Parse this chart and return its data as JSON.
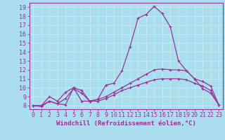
{
  "x": [
    0,
    1,
    2,
    3,
    4,
    5,
    6,
    7,
    8,
    9,
    10,
    11,
    12,
    13,
    14,
    15,
    16,
    17,
    18,
    19,
    20,
    21,
    22,
    23
  ],
  "line1": [
    8.0,
    7.9,
    8.5,
    8.2,
    8.1,
    10.0,
    8.5,
    8.5,
    8.7,
    10.3,
    10.5,
    11.9,
    14.6,
    17.8,
    18.2,
    19.1,
    18.3,
    16.8,
    13.0,
    11.9,
    11.0,
    9.9,
    9.4,
    8.1
  ],
  "line2": [
    8.0,
    8.0,
    9.0,
    8.5,
    9.5,
    10.0,
    9.7,
    8.5,
    8.7,
    9.0,
    9.5,
    10.0,
    10.5,
    11.0,
    11.5,
    12.0,
    12.1,
    12.0,
    12.0,
    11.9,
    11.0,
    10.7,
    10.2,
    8.1
  ],
  "line3": [
    8.0,
    8.0,
    8.5,
    8.2,
    8.8,
    9.9,
    9.4,
    8.5,
    8.5,
    8.8,
    9.2,
    9.7,
    10.0,
    10.3,
    10.6,
    10.9,
    11.0,
    11.0,
    11.0,
    10.9,
    10.5,
    10.2,
    9.7,
    8.1
  ],
  "color": "#993399",
  "bg_color": "#aaddee",
  "grid_color": "#cceeee",
  "xlabel": "Windchill (Refroidissement éolien,°C)",
  "xlabel_fontsize": 6.5,
  "tick_fontsize": 6,
  "xlim": [
    -0.5,
    23.5
  ],
  "ylim": [
    7.6,
    19.5
  ],
  "yticks": [
    8,
    9,
    10,
    11,
    12,
    13,
    14,
    15,
    16,
    17,
    18,
    19
  ]
}
